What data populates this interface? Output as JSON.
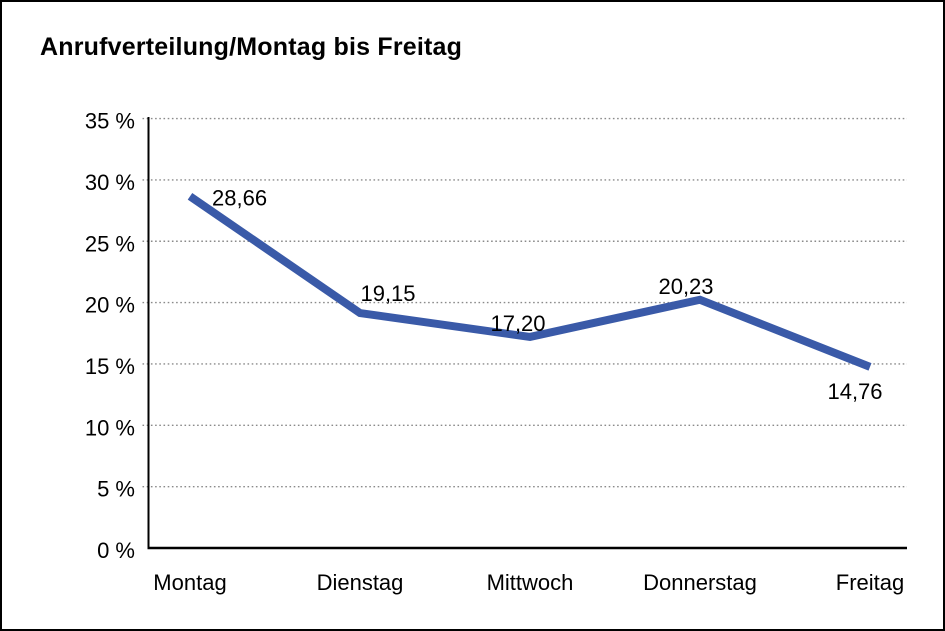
{
  "chart_data": {
    "type": "line",
    "title": "Anrufverteilung/Montag bis Freitag",
    "categories": [
      "Montag",
      "Dienstag",
      "Mittwoch",
      "Donnerstag",
      "Freitag"
    ],
    "values": [
      28.66,
      19.15,
      17.2,
      20.23,
      14.76
    ],
    "value_labels": [
      "28,66",
      "19,15",
      "17,20",
      "20,23",
      "14,76"
    ],
    "y_tick_labels": [
      "0 %",
      "5 %",
      "10 %",
      "15 %",
      "20 %",
      "25 %",
      "30 %",
      "35 %"
    ],
    "y_tick_values": [
      0,
      5,
      10,
      15,
      20,
      25,
      30,
      35
    ],
    "ylim": [
      0,
      35
    ],
    "xlabel": "",
    "ylabel": "",
    "grid": "horizontal-dotted",
    "legend": "none",
    "series_color": "#3a5aa8"
  },
  "colors": {
    "background": "#ffffff",
    "frame_border": "#000000",
    "axis": "#000000",
    "grid": "#8a8a8a",
    "text": "#000000"
  }
}
